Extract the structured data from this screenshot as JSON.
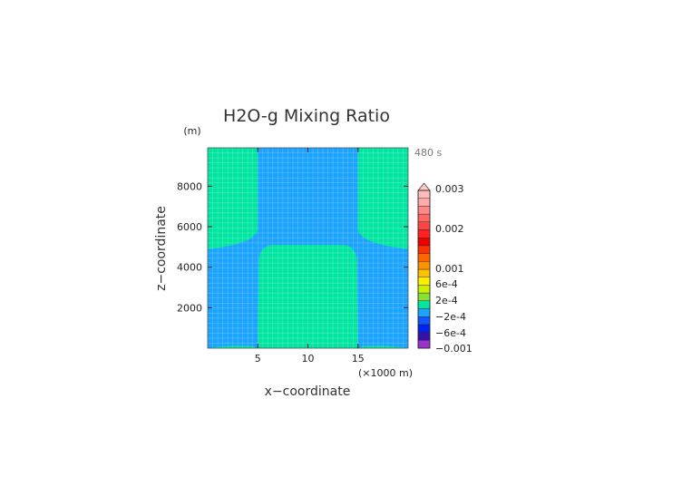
{
  "chart_data": {
    "type": "heatmap",
    "title": "H2O-g Mixing Ratio",
    "time_label": "480 s",
    "xlabel": "x−coordinate",
    "ylabel": "z−coordinate",
    "x_unit": "(×1000 m)",
    "y_unit": "(m)",
    "xlim": [
      0,
      20
    ],
    "ylim": [
      0,
      9900
    ],
    "x_ticks": [
      5,
      10,
      15
    ],
    "x_tick_labels": [
      "5",
      "10",
      "15"
    ],
    "y_ticks": [
      2000,
      4000,
      6000,
      8000
    ],
    "y_tick_labels": [
      "2000",
      "4000",
      "6000",
      "8000"
    ],
    "grid": true,
    "field": {
      "background_level": "-2e-4 to 2e-4",
      "background_color": "#1aa3ff",
      "anomaly_level": "2e-4 to 4e-4",
      "anomaly_color": "#00e5a0",
      "regions": [
        {
          "name": "left upper anomaly",
          "x_range": [
            0,
            5
          ],
          "z_range": [
            4900,
            9900
          ],
          "shape": "concave corner toward center-bottom"
        },
        {
          "name": "right upper anomaly",
          "x_range": [
            15,
            20
          ],
          "z_range": [
            4900,
            9900
          ],
          "shape": "concave corner toward center-bottom"
        },
        {
          "name": "central lower anomaly",
          "x_range": [
            5,
            15
          ],
          "z_range": [
            0,
            5100
          ],
          "shape": "rounded block"
        }
      ]
    },
    "colorbar": {
      "tick_labels": [
        "0.003",
        "0.002",
        "0.001",
        "6e-4",
        "2e-4",
        "−2e-4",
        "−6e-4",
        "−0.001"
      ],
      "levels": [
        -0.001,
        -0.0008,
        -0.0006,
        -0.0004,
        -0.0002,
        0.0002,
        0.0004,
        0.0006,
        0.0008,
        0.001,
        0.0012,
        0.0014,
        0.0016,
        0.0018,
        0.002,
        0.0022,
        0.0024,
        0.0026,
        0.0028,
        0.003
      ],
      "colors": [
        "#9933cc",
        "#3311aa",
        "#0022ee",
        "#1155ff",
        "#1aa3ff",
        "#00e5a0",
        "#88e030",
        "#ccee00",
        "#ffee00",
        "#ffc000",
        "#ff9000",
        "#ff6600",
        "#ff3300",
        "#ee0000",
        "#ff2222",
        "#ff4444",
        "#ff6666",
        "#ff8888",
        "#ffaaaa",
        "#ffbbbb"
      ],
      "extend_top_color": "#ffc8c8"
    }
  }
}
